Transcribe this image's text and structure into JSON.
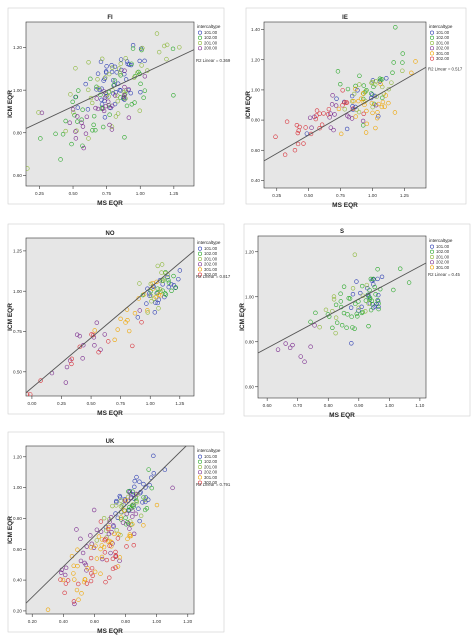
{
  "colors": {
    "panel_bg": "#e6e6e6",
    "frame": "#ffffff",
    "axis": "#333333",
    "fit_line": "#555555",
    "series_101": "#2e3fb3",
    "series_102": "#2aa82a",
    "series_200": "#9b9b9b",
    "series_201": "#8db83a",
    "series_202": "#7a2a8e",
    "series_301": "#f0a500",
    "series_302": "#d9333b"
  },
  "chart_data": [
    {
      "type": "scatter",
      "title": "FI",
      "xlabel": "MS EQR",
      "ylabel": "ICM EQR",
      "xlim": [
        0.15,
        1.4
      ],
      "ylim": [
        0.55,
        1.32
      ],
      "xticks": [
        "0.25",
        "0.50",
        "0.75",
        "1.00",
        "1.25"
      ],
      "xtick_values": [
        0.25,
        0.5,
        0.75,
        1.0,
        1.25
      ],
      "yticks": [
        "0.60",
        "0.80",
        "1.00",
        "1.20"
      ],
      "ytick_values": [
        0.6,
        0.8,
        1.0,
        1.2
      ],
      "legend_title": "intercaltype",
      "legend_position": "top-right",
      "fit_label": "R2 Linear = 0.369",
      "fit": [
        [
          0.15,
          0.82
        ],
        [
          1.4,
          1.19
        ]
      ],
      "series": [
        {
          "name": "101.00",
          "color": "#2e3fb3",
          "n": 50,
          "cx": 0.8,
          "cy": 1.02,
          "sx": 0.13,
          "sy": 0.1,
          "r": 0.6
        },
        {
          "name": "102.00",
          "color": "#2aa82a",
          "n": 48,
          "cx": 0.8,
          "cy": 0.98,
          "sx": 0.2,
          "sy": 0.12,
          "r": 0.6
        },
        {
          "name": "201.00",
          "color": "#8db83a",
          "n": 45,
          "cx": 0.85,
          "cy": 1.0,
          "sx": 0.2,
          "sy": 0.12,
          "r": 0.6
        },
        {
          "name": "200.00",
          "color": "#7a2a8e",
          "n": 32,
          "cx": 0.72,
          "cy": 0.92,
          "sx": 0.17,
          "sy": 0.1,
          "r": 0.6
        }
      ]
    },
    {
      "type": "scatter",
      "title": "IE",
      "xlabel": "MS EQR",
      "ylabel": "ICM EQR",
      "xlim": [
        0.15,
        1.42
      ],
      "ylim": [
        0.35,
        1.45
      ],
      "xticks": [
        "0.25",
        "0.50",
        "0.75",
        "1.00",
        "1.25"
      ],
      "xtick_values": [
        0.25,
        0.5,
        0.75,
        1.0,
        1.25
      ],
      "yticks": [
        "0.40",
        "0.60",
        "0.80",
        "1.00",
        "1.20",
        "1.40"
      ],
      "ytick_values": [
        0.4,
        0.6,
        0.8,
        1.0,
        1.2,
        1.4
      ],
      "legend_title": "intercaltype",
      "legend_position": "top-right",
      "fit_label": "R2 Linear = 0.517",
      "fit": [
        [
          0.15,
          0.53
        ],
        [
          1.42,
          1.15
        ]
      ],
      "series": [
        {
          "name": "101.00",
          "color": "#2e3fb3",
          "n": 16,
          "cx": 0.9,
          "cy": 0.93,
          "sx": 0.14,
          "sy": 0.1,
          "r": 0.6
        },
        {
          "name": "102.00",
          "color": "#2aa82a",
          "n": 22,
          "cx": 0.95,
          "cy": 1.0,
          "sx": 0.15,
          "sy": 0.12,
          "r": 0.6
        },
        {
          "name": "201.00",
          "color": "#8db83a",
          "n": 20,
          "cx": 0.95,
          "cy": 0.97,
          "sx": 0.15,
          "sy": 0.1,
          "r": 0.6
        },
        {
          "name": "202.00",
          "color": "#7a2a8e",
          "n": 16,
          "cx": 0.7,
          "cy": 0.82,
          "sx": 0.16,
          "sy": 0.1,
          "r": 0.6
        },
        {
          "name": "301.00",
          "color": "#f0a500",
          "n": 28,
          "cx": 1.0,
          "cy": 0.9,
          "sx": 0.16,
          "sy": 0.12,
          "r": 0.55
        },
        {
          "name": "302.00",
          "color": "#d9333b",
          "n": 28,
          "cx": 0.55,
          "cy": 0.76,
          "sx": 0.17,
          "sy": 0.12,
          "r": 0.7
        }
      ]
    },
    {
      "type": "scatter",
      "title": "NO",
      "xlabel": "MS EQR",
      "ylabel": "ICM EQR",
      "xlim": [
        -0.05,
        1.37
      ],
      "ylim": [
        0.35,
        1.33
      ],
      "xticks": [
        "0.00",
        "0.25",
        "0.50",
        "0.75",
        "1.00",
        "1.25"
      ],
      "xtick_values": [
        0.0,
        0.25,
        0.5,
        0.75,
        1.0,
        1.25
      ],
      "yticks": [
        "0.50",
        "0.75",
        "1.00",
        "1.25"
      ],
      "ytick_values": [
        0.5,
        0.75,
        1.0,
        1.25
      ],
      "legend_title": "intercaltype",
      "legend_position": "top-right",
      "fit_label": "R2 Linear = 0.817",
      "fit": [
        [
          -0.05,
          0.37
        ],
        [
          1.37,
          1.25
        ]
      ],
      "series": [
        {
          "name": "101.00",
          "color": "#2e3fb3",
          "n": 22,
          "cx": 1.08,
          "cy": 1.0,
          "sx": 0.09,
          "sy": 0.07,
          "r": 0.6
        },
        {
          "name": "102.00",
          "color": "#2aa82a",
          "n": 14,
          "cx": 1.1,
          "cy": 1.02,
          "sx": 0.08,
          "sy": 0.07,
          "r": 0.6
        },
        {
          "name": "201.00",
          "color": "#8db83a",
          "n": 16,
          "cx": 1.05,
          "cy": 1.0,
          "sx": 0.1,
          "sy": 0.08,
          "r": 0.6
        },
        {
          "name": "202.00",
          "color": "#7a2a8e",
          "n": 14,
          "cx": 0.55,
          "cy": 0.68,
          "sx": 0.25,
          "sy": 0.15,
          "r": 0.9
        },
        {
          "name": "301.00",
          "color": "#f0a500",
          "n": 18,
          "cx": 0.85,
          "cy": 0.85,
          "sx": 0.2,
          "sy": 0.13,
          "r": 0.85
        },
        {
          "name": "302.00",
          "color": "#d9333b",
          "n": 12,
          "cx": 0.45,
          "cy": 0.62,
          "sx": 0.25,
          "sy": 0.13,
          "r": 0.85
        }
      ]
    },
    {
      "type": "scatter",
      "title": "S",
      "xlabel": "MS EQR",
      "ylabel": "ICM EQR",
      "xlim": [
        0.57,
        1.12
      ],
      "ylim": [
        0.55,
        1.27
      ],
      "xticks": [
        "0.60",
        "0.70",
        "0.80",
        "0.90",
        "1.00",
        "1.10"
      ],
      "xtick_values": [
        0.6,
        0.7,
        0.8,
        0.9,
        1.0,
        1.1
      ],
      "yticks": [
        "0.60",
        "0.80",
        "1.00",
        "1.20"
      ],
      "ytick_values": [
        0.6,
        0.8,
        1.0,
        1.2
      ],
      "legend_title": "intercaltype",
      "legend_position": "top-right",
      "fit_label": "R2 Linear = 0.45",
      "fit": [
        [
          0.57,
          0.75
        ],
        [
          1.12,
          1.15
        ]
      ],
      "series": [
        {
          "name": "101.00",
          "color": "#2e3fb3",
          "n": 22,
          "cx": 0.93,
          "cy": 1.0,
          "sx": 0.04,
          "sy": 0.07,
          "r": 0.5
        },
        {
          "name": "102.00",
          "color": "#2aa82a",
          "n": 48,
          "cx": 0.9,
          "cy": 0.98,
          "sx": 0.06,
          "sy": 0.08,
          "r": 0.5
        },
        {
          "name": "201.00",
          "color": "#8db83a",
          "n": 14,
          "cx": 0.88,
          "cy": 0.96,
          "sx": 0.06,
          "sy": 0.08,
          "r": 0.5
        },
        {
          "name": "202.00",
          "color": "#7a2a8e",
          "n": 8,
          "cx": 0.68,
          "cy": 0.76,
          "sx": 0.04,
          "sy": 0.06,
          "r": 0.5
        },
        {
          "name": "301.00",
          "color": "#f0a500",
          "n": 0,
          "cx": 0.9,
          "cy": 0.95,
          "sx": 0.05,
          "sy": 0.05,
          "r": 0.5
        }
      ]
    },
    {
      "type": "scatter",
      "title": "UK",
      "xlabel": "MS EQR",
      "ylabel": "ICM EQR",
      "xlim": [
        0.16,
        1.24
      ],
      "ylim": [
        0.18,
        1.27
      ],
      "xticks": [
        "0.20",
        "0.40",
        "0.60",
        "0.80",
        "1.00",
        "1.20"
      ],
      "xtick_values": [
        0.2,
        0.4,
        0.6,
        0.8,
        1.0,
        1.2
      ],
      "yticks": [
        "0.20",
        "0.40",
        "0.60",
        "0.80",
        "1.00",
        "1.20"
      ],
      "ytick_values": [
        0.2,
        0.4,
        0.6,
        0.8,
        1.0,
        1.2
      ],
      "legend_title": "intercaltype",
      "legend_position": "top-right",
      "fit_label": "R2 Linear = 0.791",
      "fit": [
        [
          0.16,
          0.25
        ],
        [
          1.24,
          1.32
        ]
      ],
      "series": [
        {
          "name": "101.00",
          "color": "#2e3fb3",
          "n": 38,
          "cx": 0.85,
          "cy": 0.93,
          "sx": 0.08,
          "sy": 0.09,
          "r": 0.6
        },
        {
          "name": "102.00",
          "color": "#2aa82a",
          "n": 20,
          "cx": 0.85,
          "cy": 0.9,
          "sx": 0.08,
          "sy": 0.09,
          "r": 0.6
        },
        {
          "name": "201.00",
          "color": "#8db83a",
          "n": 20,
          "cx": 0.8,
          "cy": 0.85,
          "sx": 0.1,
          "sy": 0.1,
          "r": 0.7
        },
        {
          "name": "202.00",
          "color": "#7a2a8e",
          "n": 42,
          "cx": 0.68,
          "cy": 0.68,
          "sx": 0.14,
          "sy": 0.15,
          "r": 0.8
        },
        {
          "name": "301.00",
          "color": "#f0a500",
          "n": 45,
          "cx": 0.62,
          "cy": 0.55,
          "sx": 0.14,
          "sy": 0.15,
          "r": 0.8
        },
        {
          "name": "302.00",
          "color": "#d9333b",
          "n": 30,
          "cx": 0.6,
          "cy": 0.52,
          "sx": 0.14,
          "sy": 0.14,
          "r": 0.8
        }
      ]
    }
  ]
}
